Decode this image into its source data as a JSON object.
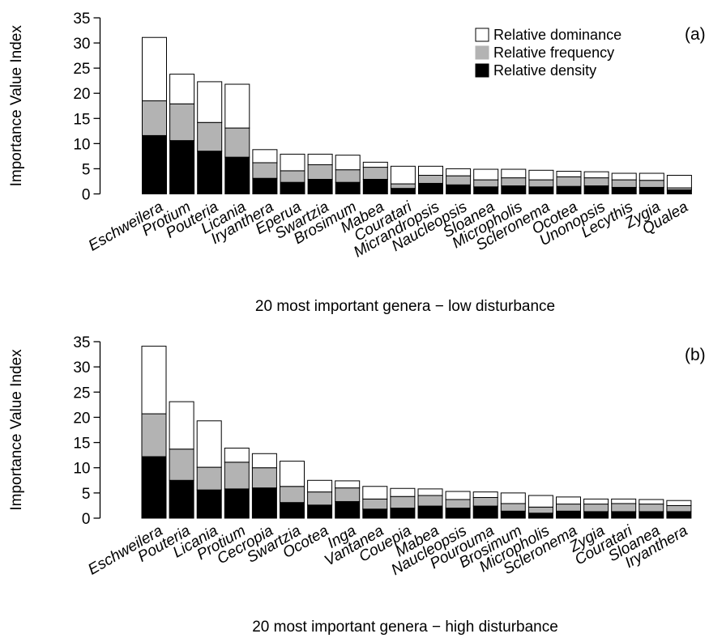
{
  "chart_data": [
    {
      "type": "bar",
      "stacked": true,
      "panel_label": "(a)",
      "ylabel": "Importance Value Index",
      "xlabel": "20 most important genera − low disturbance",
      "ylim": [
        0,
        35
      ],
      "yticks": [
        0,
        5,
        10,
        15,
        20,
        25,
        30,
        35
      ],
      "legend_position": "top-right",
      "categories": [
        "Eschweilera",
        "Protium",
        "Pouteria",
        "Licania",
        "Iryanthera",
        "Eperua",
        "Swartzia",
        "Brosimum",
        "Mabea",
        "Couratari",
        "Micrandropsis",
        "Naucleopsis",
        "Sloanea",
        "Micropholis",
        "Scleronema",
        "Ocotea",
        "Unonopsis",
        "Lecythis",
        "Zygia",
        "Qualea"
      ],
      "series": [
        {
          "name": "Relative density",
          "color": "#000000",
          "values": [
            11.6,
            10.6,
            8.5,
            7.3,
            3.1,
            2.3,
            2.9,
            2.3,
            2.9,
            1.1,
            2.1,
            1.8,
            1.4,
            1.6,
            1.4,
            1.5,
            1.6,
            1.3,
            1.3,
            0.8
          ]
        },
        {
          "name": "Relative frequency",
          "color": "#b3b3b3",
          "values": [
            6.9,
            7.3,
            5.7,
            5.8,
            3.1,
            2.3,
            2.9,
            2.5,
            2.4,
            0.9,
            1.6,
            1.8,
            1.4,
            1.6,
            1.4,
            1.9,
            1.6,
            1.5,
            1.4,
            0.4
          ]
        },
        {
          "name": "Relative dominance",
          "color": "#ffffff",
          "values": [
            12.6,
            5.9,
            8.1,
            8.7,
            2.6,
            3.3,
            2.1,
            2.9,
            1.0,
            3.5,
            1.8,
            1.4,
            2.1,
            1.7,
            1.9,
            1.1,
            1.2,
            1.3,
            1.4,
            2.5
          ]
        }
      ]
    },
    {
      "type": "bar",
      "stacked": true,
      "panel_label": "(b)",
      "ylabel": "Importance Value Index",
      "xlabel": "20 most important genera − high disturbance",
      "ylim": [
        0,
        35
      ],
      "yticks": [
        0,
        5,
        10,
        15,
        20,
        25,
        30,
        35
      ],
      "categories": [
        "Eschweilera",
        "Pouteria",
        "Licania",
        "Protium",
        "Cecropia",
        "Swartzia",
        "Ocotea",
        "Inga",
        "Vantanea",
        "Couepia",
        "Mabea",
        "Naucleopsis",
        "Pourouma",
        "Brosimum",
        "Micropholis",
        "Scleronema",
        "Zygia",
        "Couratari",
        "Sloanea",
        "Iryanthera"
      ],
      "series": [
        {
          "name": "Relative density",
          "color": "#000000",
          "values": [
            12.2,
            7.5,
            5.6,
            5.8,
            6.0,
            3.1,
            2.6,
            3.3,
            1.8,
            2.0,
            2.4,
            2.0,
            2.4,
            1.4,
            1.0,
            1.4,
            1.3,
            1.3,
            1.3,
            1.3
          ]
        },
        {
          "name": "Relative frequency",
          "color": "#b3b3b3",
          "values": [
            8.5,
            6.2,
            4.5,
            5.3,
            4.0,
            3.2,
            2.6,
            2.7,
            2.0,
            2.3,
            2.1,
            1.7,
            1.7,
            1.5,
            1.2,
            1.4,
            1.5,
            1.6,
            1.5,
            1.2
          ]
        },
        {
          "name": "Relative dominance",
          "color": "#ffffff",
          "values": [
            13.4,
            9.4,
            9.2,
            2.8,
            2.8,
            5.0,
            2.3,
            1.4,
            2.5,
            1.6,
            1.3,
            1.6,
            1.1,
            2.1,
            2.3,
            1.4,
            1.0,
            0.9,
            0.9,
            1.0
          ]
        }
      ]
    }
  ]
}
